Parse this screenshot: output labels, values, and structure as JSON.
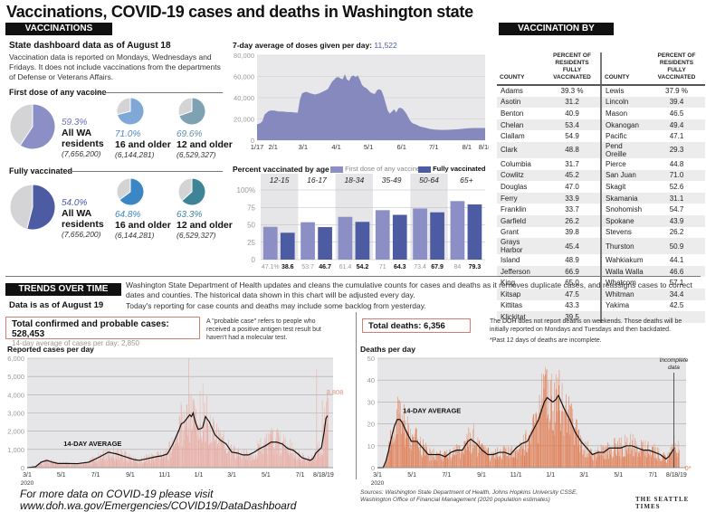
{
  "title": "Vaccinations, COVID-19 cases and deaths in Washington state",
  "vaccinations": {
    "header": "VACCINATIONS",
    "as_of": "State dashboard data as of August 18",
    "note": "Vaccination data is reported on Mondays, Wednesdays and Fridays. It does not include vaccinations from the departments of Defense or Veterans Affairs.",
    "first_dose": {
      "label": "First dose of any vaccine",
      "pies": [
        {
          "pct": "59.3%",
          "value": 59.3,
          "group": "All WA residents",
          "group_l1": "All WA",
          "group_l2": "residents",
          "pop": "(7,656,200)",
          "color": "#8b8fc6"
        },
        {
          "pct": "71.0%",
          "value": 71.0,
          "group": "16 and older",
          "pop": "(6,144,281)",
          "color": "#7fa8d6"
        },
        {
          "pct": "69.6%",
          "value": 69.6,
          "group": "12 and older",
          "pop": "(6,529,327)",
          "color": "#7ea2b3"
        }
      ]
    },
    "fully": {
      "label": "Fully vaccinated",
      "pies": [
        {
          "pct": "54.0%",
          "value": 54.0,
          "group": "All WA residents",
          "group_l1": "All WA",
          "group_l2": "residents",
          "pop": "(7,656,200)",
          "color": "#4d5ba3"
        },
        {
          "pct": "64.8%",
          "value": 64.8,
          "group": "16 and older",
          "pop": "(6,144,281)",
          "color": "#3b86c4"
        },
        {
          "pct": "63.3%",
          "value": 63.3,
          "group": "12 and older",
          "pop": "(6,529,327)",
          "color": "#3f8496"
        }
      ]
    }
  },
  "chart_data": [
    {
      "id": "doses",
      "type": "area",
      "title": "7-day average of doses given per day:",
      "title_value": "11,522",
      "ylim": [
        0,
        80000
      ],
      "yticks": [
        "0",
        "20,000",
        "40,000",
        "60,000",
        "80,000"
      ],
      "ytick_values": [
        0,
        20000,
        40000,
        60000,
        80000
      ],
      "xticks": [
        "1/17",
        "2/1",
        "3/1",
        "4/1",
        "5/1",
        "6/1",
        "7/1",
        "8/1",
        "8/18"
      ],
      "xtick_days": [
        0,
        15,
        43,
        74,
        104,
        135,
        165,
        196,
        213
      ],
      "color": "#8589bd",
      "x_days": [
        0,
        3,
        5,
        7,
        9,
        11,
        13,
        16,
        20,
        24,
        28,
        32,
        36,
        38,
        40,
        42,
        44,
        46,
        50,
        54,
        58,
        62,
        66,
        70,
        72,
        74,
        76,
        78,
        80,
        82,
        84,
        86,
        88,
        90,
        92,
        94,
        96,
        98,
        100,
        102,
        104,
        106,
        108,
        110,
        112,
        114,
        116,
        118,
        120,
        122,
        124,
        126,
        128,
        130,
        132,
        134,
        136,
        138,
        140,
        142,
        144,
        146,
        148,
        150,
        152,
        154,
        156,
        158,
        160,
        162,
        166,
        170,
        174,
        178,
        182,
        186,
        190,
        194,
        198,
        202,
        206,
        210,
        213
      ],
      "values": [
        15000,
        16000,
        18000,
        24000,
        26000,
        27500,
        28000,
        28000,
        27000,
        27000,
        26500,
        26500,
        26000,
        26000,
        38000,
        44000,
        45000,
        45500,
        44000,
        43000,
        44000,
        46000,
        48000,
        55000,
        57000,
        59000,
        59500,
        58000,
        57500,
        62000,
        57000,
        56000,
        60000,
        61000,
        59500,
        61000,
        57000,
        52000,
        50000,
        49000,
        47000,
        45000,
        44000,
        43500,
        47000,
        48000,
        47000,
        42000,
        35000,
        28000,
        25000,
        27000,
        29000,
        26000,
        30000,
        30500,
        29500,
        27000,
        24000,
        20000,
        17000,
        15500,
        15000,
        14000,
        13000,
        12500,
        12000,
        11500,
        11000,
        10500,
        10000,
        9800,
        9700,
        9800,
        10000,
        10200,
        10500,
        11000,
        11300,
        11500,
        11500,
        11522,
        11522
      ]
    },
    {
      "id": "age",
      "type": "bar",
      "title": "Percent vaccinated by age",
      "categories": [
        "12-15",
        "16-17",
        "18-34",
        "35-49",
        "50-64",
        "65+"
      ],
      "ylim": [
        0,
        100
      ],
      "yticks": [
        "0",
        "25",
        "50",
        "75",
        "100%"
      ],
      "ytick_values": [
        0,
        25,
        50,
        75,
        100
      ],
      "series": [
        {
          "name": "First dose of any vaccine",
          "color": "#8b8fc6",
          "values": [
            47.1,
            53.7,
            61.4,
            71,
            73.4,
            84
          ],
          "labels": [
            "47.1%",
            "53.7",
            "61.4",
            "71",
            "73.4",
            "84"
          ]
        },
        {
          "name": "Fully vaccinated",
          "color": "#4d5ba3",
          "values": [
            38.6,
            46.7,
            54.2,
            64.3,
            67.9,
            79.3
          ],
          "labels": [
            "38.6",
            "46.7",
            "54.2",
            "64.3",
            "67.9",
            "79.3"
          ]
        }
      ]
    },
    {
      "id": "cases",
      "type": "bar",
      "title": "Reported cases per day",
      "ylim": [
        0,
        6000
      ],
      "yticks": [
        "0",
        "1,000",
        "2,000",
        "3,000",
        "4,000",
        "5,000",
        "6,000"
      ],
      "ytick_values": [
        0,
        1000,
        2000,
        3000,
        4000,
        5000,
        6000
      ],
      "xticks": [
        "3/1",
        "5/1",
        "7/1",
        "9/1",
        "11/1",
        "1/1",
        "3/1",
        "5/1",
        "7/1",
        "8/1",
        "8/19"
      ],
      "xtick_days": [
        0,
        61,
        122,
        184,
        245,
        306,
        365,
        426,
        487,
        518,
        536
      ],
      "xtick_sub": "2020",
      "bar_color": "#e8a9a0",
      "avg_color": "#111111",
      "avg_label": "14-DAY AVERAGE",
      "last_label": "3,808",
      "last_value": 3808,
      "avg_x": [
        0,
        15,
        25,
        35,
        45,
        55,
        70,
        90,
        110,
        130,
        145,
        160,
        175,
        190,
        200,
        215,
        230,
        240,
        250,
        260,
        270,
        275,
        280,
        285,
        290,
        293,
        296,
        300,
        305,
        310,
        313,
        318,
        325,
        335,
        345,
        355,
        365,
        375,
        385,
        395,
        405,
        415,
        425,
        435,
        445,
        455,
        465,
        475,
        485,
        490,
        495,
        500,
        505,
        510,
        515,
        520,
        525,
        530,
        533,
        536
      ],
      "avg_values": [
        0,
        50,
        300,
        400,
        300,
        230,
        230,
        220,
        300,
        600,
        850,
        750,
        600,
        450,
        400,
        500,
        600,
        650,
        750,
        1300,
        2000,
        2400,
        2500,
        2700,
        2900,
        2800,
        3000,
        2500,
        2100,
        2150,
        2200,
        2800,
        2500,
        1800,
        1500,
        1300,
        850,
        800,
        700,
        700,
        850,
        1050,
        1200,
        1400,
        1400,
        1300,
        1050,
        950,
        700,
        550,
        500,
        450,
        400,
        500,
        800,
        950,
        1100,
        2000,
        2700,
        2850
      ],
      "spikes": [
        [
          274,
          3600
        ],
        [
          288,
          6000
        ],
        [
          296,
          3800
        ],
        [
          308,
          4200
        ],
        [
          313,
          4600
        ],
        [
          330,
          2300
        ],
        [
          430,
          1900
        ],
        [
          460,
          1700
        ],
        [
          516,
          5400
        ],
        [
          526,
          3700
        ],
        [
          530,
          3300
        ],
        [
          536,
          3808
        ]
      ]
    },
    {
      "id": "deaths",
      "type": "bar",
      "title": "Deaths per day",
      "ylim": [
        0,
        50
      ],
      "yticks": [
        "0",
        "10",
        "20",
        "30",
        "40",
        "50"
      ],
      "ytick_values": [
        0,
        10,
        20,
        30,
        40,
        50
      ],
      "xticks": [
        "3/1",
        "5/1",
        "7/1",
        "9/1",
        "11/1",
        "1/1",
        "3/1",
        "5/1",
        "7/1",
        "8/1",
        "8/19"
      ],
      "xtick_days": [
        0,
        61,
        122,
        184,
        245,
        306,
        365,
        426,
        487,
        518,
        536
      ],
      "xtick_sub": "2020",
      "bar_color": "#e07a4f",
      "avg_color": "#111111",
      "avg_label": "14-DAY AVERAGE",
      "last_label": "0*",
      "annotation": "Incomplete data",
      "annotation_day": 524,
      "avg_x": [
        0,
        10,
        15,
        20,
        25,
        30,
        35,
        40,
        45,
        50,
        60,
        70,
        80,
        90,
        100,
        110,
        120,
        130,
        140,
        150,
        155,
        160,
        165,
        175,
        185,
        195,
        205,
        215,
        225,
        235,
        245,
        255,
        265,
        275,
        285,
        290,
        295,
        300,
        305,
        310,
        315,
        320,
        325,
        330,
        340,
        350,
        360,
        370,
        380,
        390,
        400,
        410,
        420,
        430,
        440,
        450,
        460,
        470,
        480,
        490,
        500,
        505,
        510,
        515,
        520,
        525
      ],
      "avg_values": [
        0,
        0,
        3,
        8,
        14,
        19,
        22,
        22,
        20,
        17,
        12,
        12,
        9,
        6,
        6,
        6,
        5,
        7,
        8,
        8,
        10,
        12,
        13,
        11,
        8,
        6,
        6,
        7,
        7,
        6,
        9,
        11,
        12,
        17,
        22,
        26,
        30,
        32,
        31,
        30,
        31,
        33,
        30,
        27,
        22,
        16,
        12,
        9,
        6,
        7,
        7,
        9,
        9,
        9,
        10,
        10,
        9,
        8,
        8,
        7,
        6,
        5,
        4,
        5,
        7,
        9
      ],
      "spikes": [
        [
          40,
          30
        ],
        [
          170,
          20
        ],
        [
          290,
          43
        ],
        [
          296,
          46
        ],
        [
          302,
          40
        ],
        [
          308,
          43
        ],
        [
          318,
          41
        ],
        [
          524,
          15
        ]
      ]
    }
  ],
  "county_table": {
    "header": "VACCINATION BY COUNTY",
    "col_county": "COUNTY",
    "col_pct_l1": "PERCENT OF",
    "col_pct_l2": "RESIDENTS",
    "col_pct_l3": "FULLY VACCINATED",
    "left": [
      [
        "Adams",
        "39.3 %"
      ],
      [
        "Asotin",
        "31.2"
      ],
      [
        "Benton",
        "40.9"
      ],
      [
        "Chelan",
        "53.4"
      ],
      [
        "Clallam",
        "54.9"
      ],
      [
        "Clark",
        "48.8"
      ],
      [
        "Columbia",
        "31.7"
      ],
      [
        "Cowlitz",
        "45.2"
      ],
      [
        "Douglas",
        "47.0"
      ],
      [
        "Ferry",
        "33.9"
      ],
      [
        "Franklin",
        "33.7"
      ],
      [
        "Garfield",
        "26.2"
      ],
      [
        "Grant",
        "39.8"
      ],
      [
        "Grays Harbor",
        "45.4"
      ],
      [
        "Island",
        "48.9"
      ],
      [
        "Jefferson",
        "66.9"
      ],
      [
        "King",
        "65.0"
      ],
      [
        "Kitsap",
        "47.5"
      ],
      [
        "Kittitas",
        "43.3"
      ],
      [
        "Klickitat",
        "39.5"
      ]
    ],
    "right": [
      [
        "Lewis",
        "37.9 %"
      ],
      [
        "Lincoln",
        "39.4"
      ],
      [
        "Mason",
        "46.5"
      ],
      [
        "Okanogan",
        "49.4"
      ],
      [
        "Pacific",
        "47.1"
      ],
      [
        "Pend Oreille",
        "29.3"
      ],
      [
        "Pierce",
        "44.8"
      ],
      [
        "San Juan",
        "71.0"
      ],
      [
        "Skagit",
        "52.6"
      ],
      [
        "Skamania",
        "31.1"
      ],
      [
        "Snohomish",
        "54.7"
      ],
      [
        "Spokane",
        "43.9"
      ],
      [
        "Stevens",
        "26.2"
      ],
      [
        "Thurston",
        "50.9"
      ],
      [
        "Wahkiakum",
        "44.1"
      ],
      [
        "Walla Walla",
        "46.6"
      ],
      [
        "Whatcom",
        "57.1"
      ],
      [
        "Whitman",
        "34.4"
      ],
      [
        "Yakima",
        "42.5"
      ],
      [
        "",
        ""
      ]
    ]
  },
  "trends": {
    "header": "TRENDS OVER TIME",
    "as_of": "Data is as of August 19",
    "note1": "Washington State Department of Health updates and cleans the cumulative counts for cases and deaths as it removes duplicate cases, and reassigns cases to correct dates and counties. The historical data shown in this chart will be adjusted every day.",
    "note2": "Today's reporting for case counts and deaths may include some backlog from yesterday.",
    "cases_total": "Total confirmed and probable cases: 528,453",
    "cases_avg": "14-day average of cases per day: 2,850",
    "probable_note": "A \"probable case\" refers to people who received a positive antigen test result but haven't had a molecular test.",
    "deaths_total": "Total deaths: 6,356",
    "deaths_note": "The DOH does not report deaths on weekends. Those deaths will be initially reported on Mondays and Tuesdays and then backdated.",
    "deaths_note2": "*Past 12 days of deaths are incomplete."
  },
  "footer": {
    "more_l1": "For more data on COVID-19 please visit",
    "more_l2": "www.doh.wa.gov/Emergencies/COVID19/DataDashboard",
    "sources": "Sources: Washington State Department of Health, Johns Hopkins University CSSE, Washington Office of Financial Management (2020 population estimates)",
    "brand": "THE SEATTLE TIMES"
  }
}
